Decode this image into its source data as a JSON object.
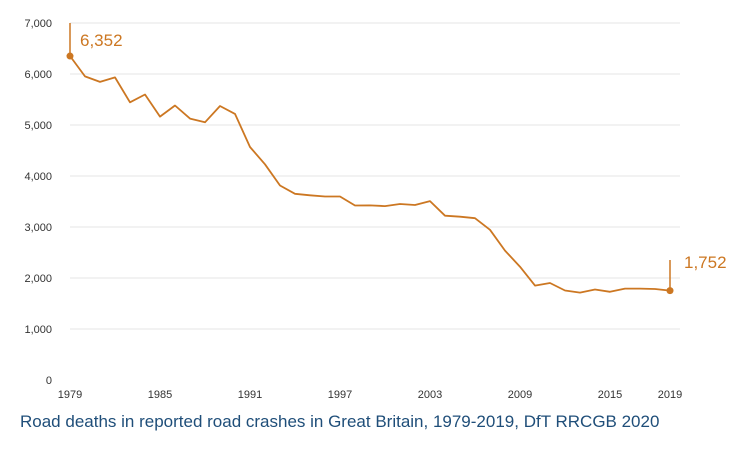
{
  "caption": "Road deaths in reported road crashes in Great Britain, 1979-2019, DfT RRCGB 2020",
  "chart_data": {
    "type": "line",
    "title": "",
    "xlabel": "",
    "ylabel": "",
    "grid": true,
    "legend": "none",
    "line_color": "#cc7722",
    "xlim": [
      1979,
      2019
    ],
    "ylim": [
      0,
      7000
    ],
    "x_ticks": [
      1979,
      1985,
      1991,
      1997,
      2003,
      2009,
      2015,
      2019
    ],
    "y_ticks": [
      0,
      1000,
      2000,
      3000,
      4000,
      5000,
      6000,
      7000
    ],
    "y_tick_labels": [
      "0",
      "1,000",
      "2,000",
      "3,000",
      "4,000",
      "5,000",
      "6,000",
      "7,000"
    ],
    "series": [
      {
        "x": [
          1979,
          1980,
          1981,
          1982,
          1983,
          1984,
          1985,
          1986,
          1987,
          1988,
          1989,
          1990,
          1991,
          1992,
          1993,
          1994,
          1995,
          1996,
          1997,
          1998,
          1999,
          2000,
          2001,
          2002,
          2003,
          2004,
          2005,
          2006,
          2007,
          2008,
          2009,
          2010,
          2011,
          2012,
          2013,
          2014,
          2015,
          2016,
          2017,
          2018,
          2019
        ],
        "values": [
          6352,
          5953,
          5846,
          5934,
          5445,
          5599,
          5165,
          5382,
          5125,
          5052,
          5373,
          5217,
          4568,
          4229,
          3814,
          3650,
          3621,
          3598,
          3599,
          3421,
          3423,
          3409,
          3450,
          3431,
          3508,
          3221,
          3201,
          3172,
          2946,
          2538,
          2222,
          1850,
          1901,
          1754,
          1713,
          1775,
          1730,
          1792,
          1793,
          1784,
          1752
        ]
      }
    ],
    "annotations": [
      {
        "x": 1979,
        "value": 6352,
        "label": "6,352"
      },
      {
        "x": 2019,
        "value": 1752,
        "label": "1,752"
      }
    ]
  }
}
